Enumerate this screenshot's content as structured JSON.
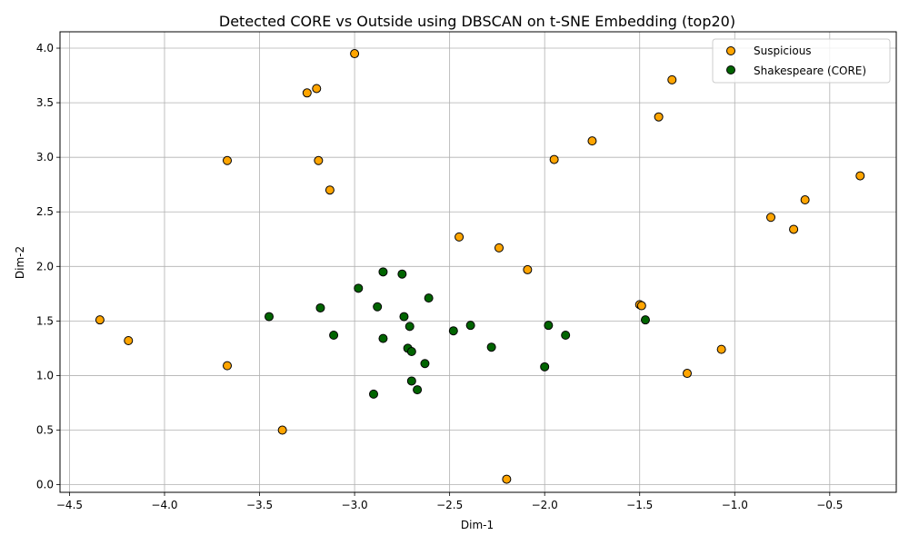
{
  "chart_data": {
    "type": "scatter",
    "title": "Detected CORE vs Outside using DBSCAN on t-SNE Embedding (top20)",
    "xlabel": "Dim-1",
    "ylabel": "Dim-2",
    "xlim": [
      -4.55,
      -0.15
    ],
    "ylim": [
      -0.07,
      4.15
    ],
    "xticks": [
      -4.5,
      -4.0,
      -3.5,
      -3.0,
      -2.5,
      -2.0,
      -1.5,
      -1.0,
      -0.5
    ],
    "xtick_labels": [
      "−4.5",
      "−4.0",
      "−3.5",
      "−3.0",
      "−2.5",
      "−2.0",
      "−1.5",
      "−1.0",
      "−0.5"
    ],
    "yticks": [
      0.0,
      0.5,
      1.0,
      1.5,
      2.0,
      2.5,
      3.0,
      3.5,
      4.0
    ],
    "ytick_labels": [
      "0.0",
      "0.5",
      "1.0",
      "1.5",
      "2.0",
      "2.5",
      "3.0",
      "3.5",
      "4.0"
    ],
    "grid": true,
    "legend_position": "top-right",
    "series": [
      {
        "name": "Suspicious",
        "color": "#ffa500",
        "points": [
          [
            -3.0,
            3.95
          ],
          [
            -3.25,
            3.59
          ],
          [
            -3.2,
            3.63
          ],
          [
            -3.67,
            2.97
          ],
          [
            -3.19,
            2.97
          ],
          [
            -3.13,
            2.7
          ],
          [
            -4.34,
            1.51
          ],
          [
            -4.19,
            1.32
          ],
          [
            -3.67,
            1.09
          ],
          [
            -3.38,
            0.5
          ],
          [
            -2.45,
            2.27
          ],
          [
            -2.24,
            2.17
          ],
          [
            -2.09,
            1.97
          ],
          [
            -2.2,
            0.05
          ],
          [
            -1.95,
            2.98
          ],
          [
            -1.75,
            3.15
          ],
          [
            -1.4,
            3.37
          ],
          [
            -1.33,
            3.71
          ],
          [
            -1.5,
            1.65
          ],
          [
            -1.49,
            1.64
          ],
          [
            -1.25,
            1.02
          ],
          [
            -1.07,
            1.24
          ],
          [
            -0.81,
            2.45
          ],
          [
            -0.69,
            2.34
          ],
          [
            -0.63,
            2.61
          ],
          [
            -0.34,
            2.83
          ]
        ]
      },
      {
        "name": "Shakespeare (CORE)",
        "color": "#006400",
        "points": [
          [
            -3.45,
            1.54
          ],
          [
            -3.18,
            1.62
          ],
          [
            -3.11,
            1.37
          ],
          [
            -2.98,
            1.8
          ],
          [
            -2.85,
            1.95
          ],
          [
            -2.75,
            1.93
          ],
          [
            -2.88,
            1.63
          ],
          [
            -2.74,
            1.54
          ],
          [
            -2.61,
            1.71
          ],
          [
            -2.71,
            1.45
          ],
          [
            -2.85,
            1.34
          ],
          [
            -2.72,
            1.25
          ],
          [
            -2.7,
            1.22
          ],
          [
            -2.63,
            1.11
          ],
          [
            -2.7,
            0.95
          ],
          [
            -2.9,
            0.83
          ],
          [
            -2.67,
            0.87
          ],
          [
            -2.48,
            1.41
          ],
          [
            -2.39,
            1.46
          ],
          [
            -2.28,
            1.26
          ],
          [
            -1.98,
            1.46
          ],
          [
            -1.89,
            1.37
          ],
          [
            -2.0,
            1.08
          ],
          [
            -1.47,
            1.51
          ]
        ]
      }
    ]
  }
}
